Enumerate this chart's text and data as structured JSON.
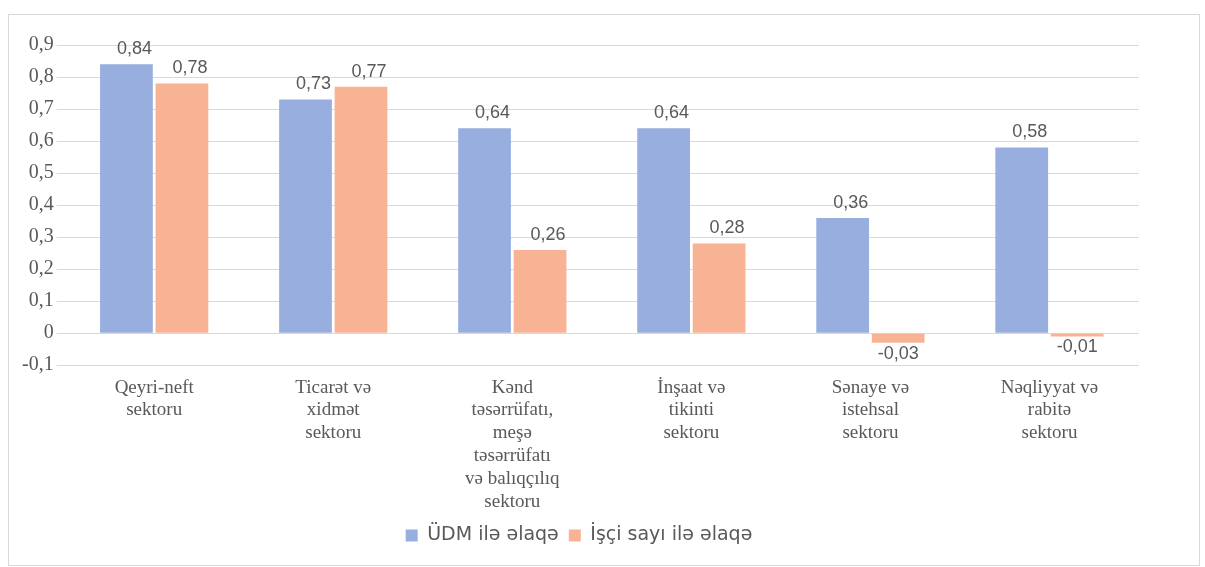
{
  "chart_data": {
    "type": "bar",
    "categories": [
      "Qeyri-neft sektoru",
      "Ticarət və xidmət sektoru",
      "Kənd təsərrüfatı, meşə təsərrüfatı və balıqçılıq sektoru",
      "İnşaat və tikinti sektoru",
      "Sənaye və istehsal sektoru",
      "Nəqliyyat və rabitə sektoru"
    ],
    "series": [
      {
        "name": "ÜDM ilə əlaqə",
        "color": "#98aedf",
        "values": [
          0.84,
          0.73,
          0.64,
          0.64,
          0.36,
          0.58
        ],
        "value_labels": [
          "0,84",
          "0,73",
          "0,64",
          "0,64",
          "0,36",
          "0,58"
        ]
      },
      {
        "name": "İşçi sayı ilə əlaqə",
        "color": "#f7b394",
        "values": [
          0.78,
          0.77,
          0.26,
          0.28,
          -0.03,
          -0.01
        ],
        "value_labels": [
          "0,78",
          "0,77",
          "0,26",
          "0,28",
          "-0,03",
          "-0,01"
        ]
      }
    ],
    "ylim": [
      -0.1,
      0.9
    ],
    "yticks": [
      {
        "value": -0.1,
        "label": "-0,1"
      },
      {
        "value": 0,
        "label": "0"
      },
      {
        "value": 0.1,
        "label": "0,1"
      },
      {
        "value": 0.2,
        "label": "0,2"
      },
      {
        "value": 0.3,
        "label": "0,3"
      },
      {
        "value": 0.4,
        "label": "0,4"
      },
      {
        "value": 0.5,
        "label": "0,5"
      },
      {
        "value": 0.6,
        "label": "0,6"
      },
      {
        "value": 0.7,
        "label": "0,7"
      },
      {
        "value": 0.8,
        "label": "0,8"
      },
      {
        "value": 0.9,
        "label": "0,9"
      }
    ],
    "grid": "y",
    "legend": "bottom"
  }
}
